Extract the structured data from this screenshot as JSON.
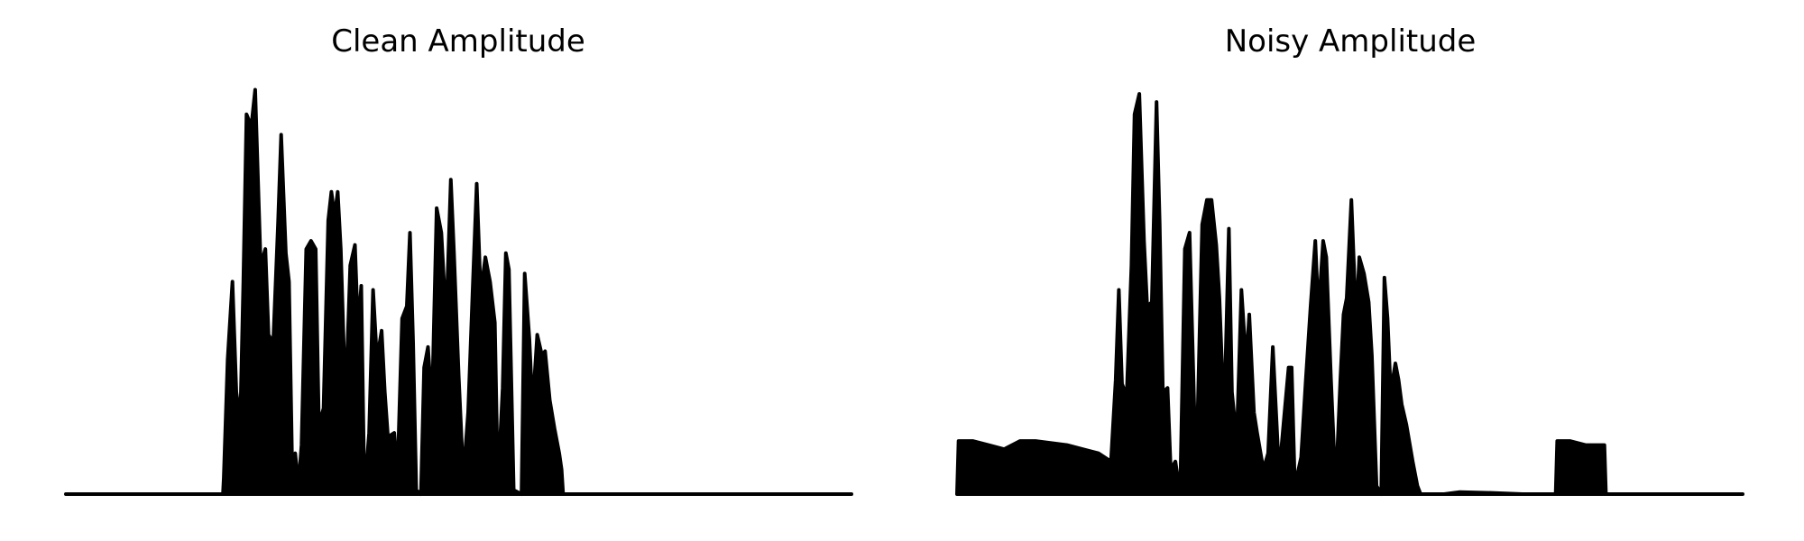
{
  "chart_data": [
    {
      "type": "area",
      "title": "Clean Amplitude",
      "xlabel": "",
      "ylabel": "",
      "axes_visible": false,
      "grid": false,
      "xlim": [
        0,
        1
      ],
      "ylim": [
        0,
        1
      ],
      "color": "#000000",
      "envelope": [
        [
          0.0,
          0.0
        ],
        [
          0.2,
          0.0
        ],
        [
          0.201,
          0.04
        ],
        [
          0.206,
          0.33
        ],
        [
          0.212,
          0.52
        ],
        [
          0.217,
          0.25
        ],
        [
          0.222,
          0.18
        ],
        [
          0.226,
          0.52
        ],
        [
          0.23,
          0.93
        ],
        [
          0.236,
          0.9
        ],
        [
          0.241,
          0.99
        ],
        [
          0.248,
          0.56
        ],
        [
          0.254,
          0.6
        ],
        [
          0.258,
          0.39
        ],
        [
          0.264,
          0.37
        ],
        [
          0.27,
          0.66
        ],
        [
          0.274,
          0.88
        ],
        [
          0.28,
          0.59
        ],
        [
          0.284,
          0.52
        ],
        [
          0.288,
          0.08
        ],
        [
          0.292,
          0.1
        ],
        [
          0.296,
          0.02
        ],
        [
          0.3,
          0.12
        ],
        [
          0.306,
          0.6
        ],
        [
          0.312,
          0.62
        ],
        [
          0.318,
          0.6
        ],
        [
          0.322,
          0.17
        ],
        [
          0.328,
          0.21
        ],
        [
          0.334,
          0.67
        ],
        [
          0.338,
          0.74
        ],
        [
          0.342,
          0.68
        ],
        [
          0.346,
          0.74
        ],
        [
          0.35,
          0.6
        ],
        [
          0.356,
          0.22
        ],
        [
          0.362,
          0.56
        ],
        [
          0.368,
          0.61
        ],
        [
          0.372,
          0.4
        ],
        [
          0.376,
          0.51
        ],
        [
          0.38,
          0.0
        ],
        [
          0.386,
          0.15
        ],
        [
          0.391,
          0.5
        ],
        [
          0.396,
          0.33
        ],
        [
          0.402,
          0.4
        ],
        [
          0.406,
          0.25
        ],
        [
          0.41,
          0.14
        ],
        [
          0.418,
          0.15
        ],
        [
          0.422,
          0.04
        ],
        [
          0.428,
          0.43
        ],
        [
          0.434,
          0.46
        ],
        [
          0.438,
          0.64
        ],
        [
          0.442,
          0.37
        ],
        [
          0.446,
          0.01
        ],
        [
          0.452,
          0.0
        ],
        [
          0.456,
          0.31
        ],
        [
          0.461,
          0.36
        ],
        [
          0.466,
          0.21
        ],
        [
          0.472,
          0.7
        ],
        [
          0.478,
          0.64
        ],
        [
          0.484,
          0.42
        ],
        [
          0.49,
          0.77
        ],
        [
          0.494,
          0.59
        ],
        [
          0.5,
          0.29
        ],
        [
          0.506,
          0.04
        ],
        [
          0.512,
          0.2
        ],
        [
          0.518,
          0.51
        ],
        [
          0.523,
          0.76
        ],
        [
          0.528,
          0.49
        ],
        [
          0.534,
          0.58
        ],
        [
          0.54,
          0.52
        ],
        [
          0.546,
          0.42
        ],
        [
          0.55,
          0.02
        ],
        [
          0.556,
          0.26
        ],
        [
          0.56,
          0.59
        ],
        [
          0.564,
          0.55
        ],
        [
          0.57,
          0.01
        ],
        [
          0.58,
          0.0
        ],
        [
          0.584,
          0.54
        ],
        [
          0.59,
          0.38
        ],
        [
          0.594,
          0.21
        ],
        [
          0.6,
          0.39
        ],
        [
          0.606,
          0.34
        ],
        [
          0.61,
          0.35
        ],
        [
          0.616,
          0.23
        ],
        [
          0.622,
          0.16
        ],
        [
          0.628,
          0.1
        ],
        [
          0.631,
          0.06
        ],
        [
          0.633,
          0.0
        ],
        [
          1.0,
          0.0
        ]
      ]
    },
    {
      "type": "area",
      "title": "Noisy Amplitude",
      "xlabel": "",
      "ylabel": "",
      "axes_visible": false,
      "grid": false,
      "xlim": [
        0,
        1
      ],
      "ylim": [
        0,
        1
      ],
      "color": "#000000",
      "envelope": [
        [
          0.0,
          0.0
        ],
        [
          0.002,
          0.13
        ],
        [
          0.02,
          0.13
        ],
        [
          0.04,
          0.12
        ],
        [
          0.06,
          0.11
        ],
        [
          0.08,
          0.13
        ],
        [
          0.1,
          0.13
        ],
        [
          0.14,
          0.12
        ],
        [
          0.16,
          0.11
        ],
        [
          0.18,
          0.1
        ],
        [
          0.196,
          0.08
        ],
        [
          0.202,
          0.28
        ],
        [
          0.206,
          0.5
        ],
        [
          0.21,
          0.27
        ],
        [
          0.216,
          0.24
        ],
        [
          0.222,
          0.56
        ],
        [
          0.226,
          0.93
        ],
        [
          0.232,
          0.98
        ],
        [
          0.238,
          0.62
        ],
        [
          0.242,
          0.46
        ],
        [
          0.248,
          0.47
        ],
        [
          0.254,
          0.96
        ],
        [
          0.258,
          0.66
        ],
        [
          0.262,
          0.25
        ],
        [
          0.268,
          0.26
        ],
        [
          0.272,
          0.06
        ],
        [
          0.278,
          0.08
        ],
        [
          0.284,
          0.0
        ],
        [
          0.29,
          0.6
        ],
        [
          0.296,
          0.64
        ],
        [
          0.302,
          0.21
        ],
        [
          0.306,
          0.17
        ],
        [
          0.312,
          0.66
        ],
        [
          0.318,
          0.72
        ],
        [
          0.324,
          0.72
        ],
        [
          0.33,
          0.61
        ],
        [
          0.334,
          0.48
        ],
        [
          0.34,
          0.18
        ],
        [
          0.346,
          0.65
        ],
        [
          0.35,
          0.25
        ],
        [
          0.356,
          0.13
        ],
        [
          0.362,
          0.5
        ],
        [
          0.368,
          0.32
        ],
        [
          0.372,
          0.44
        ],
        [
          0.378,
          0.2
        ],
        [
          0.382,
          0.15
        ],
        [
          0.39,
          0.06
        ],
        [
          0.396,
          0.1
        ],
        [
          0.402,
          0.36
        ],
        [
          0.41,
          0.05
        ],
        [
          0.416,
          0.18
        ],
        [
          0.422,
          0.31
        ],
        [
          0.426,
          0.31
        ],
        [
          0.43,
          0.02
        ],
        [
          0.438,
          0.09
        ],
        [
          0.444,
          0.28
        ],
        [
          0.45,
          0.46
        ],
        [
          0.456,
          0.62
        ],
        [
          0.46,
          0.44
        ],
        [
          0.466,
          0.62
        ],
        [
          0.47,
          0.58
        ],
        [
          0.476,
          0.28
        ],
        [
          0.482,
          0.01
        ],
        [
          0.488,
          0.28
        ],
        [
          0.492,
          0.44
        ],
        [
          0.496,
          0.48
        ],
        [
          0.502,
          0.72
        ],
        [
          0.508,
          0.42
        ],
        [
          0.512,
          0.58
        ],
        [
          0.518,
          0.54
        ],
        [
          0.524,
          0.47
        ],
        [
          0.528,
          0.34
        ],
        [
          0.534,
          0.02
        ],
        [
          0.54,
          0.0
        ],
        [
          0.544,
          0.53
        ],
        [
          0.548,
          0.43
        ],
        [
          0.552,
          0.25
        ],
        [
          0.558,
          0.32
        ],
        [
          0.562,
          0.28
        ],
        [
          0.566,
          0.22
        ],
        [
          0.572,
          0.17
        ],
        [
          0.58,
          0.08
        ],
        [
          0.586,
          0.02
        ],
        [
          0.59,
          0.0
        ],
        [
          0.6,
          0.0
        ],
        [
          0.62,
          0.0
        ],
        [
          0.64,
          0.005
        ],
        [
          0.68,
          0.003
        ],
        [
          0.72,
          0.0
        ],
        [
          0.762,
          0.0
        ],
        [
          0.764,
          0.13
        ],
        [
          0.78,
          0.13
        ],
        [
          0.8,
          0.12
        ],
        [
          0.82,
          0.12
        ],
        [
          0.824,
          0.12
        ],
        [
          0.826,
          0.0
        ],
        [
          1.0,
          0.0
        ]
      ]
    }
  ]
}
